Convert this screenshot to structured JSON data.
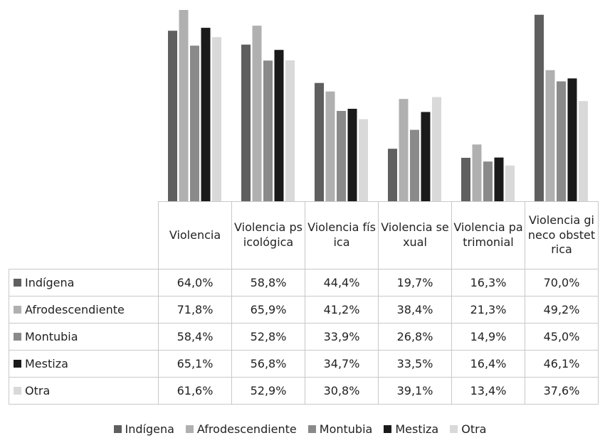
{
  "chart_data": {
    "type": "bar",
    "categories": [
      "Violencia",
      "Violencia psicológica",
      "Violencia física",
      "Violencia sexual",
      "Violencia patrimonial",
      "Violencia gineco obstetrica"
    ],
    "series": [
      {
        "name": "Indígena",
        "color": "#5f5f5f",
        "values": [
          64.0,
          58.8,
          44.4,
          19.7,
          16.3,
          70.0
        ],
        "value_labels": [
          "64,0%",
          "58,8%",
          "44,4%",
          "19,7%",
          "16,3%",
          "70,0%"
        ]
      },
      {
        "name": "Afrodescendiente",
        "color": "#b0b0b0",
        "values": [
          71.8,
          65.9,
          41.2,
          38.4,
          21.3,
          49.2
        ],
        "value_labels": [
          "71,8%",
          "65,9%",
          "41,2%",
          "38,4%",
          "21,3%",
          "49,2%"
        ]
      },
      {
        "name": "Montubia",
        "color": "#8a8a8a",
        "values": [
          58.4,
          52.8,
          33.9,
          26.8,
          14.9,
          45.0
        ],
        "value_labels": [
          "58,4%",
          "52,8%",
          "33,9%",
          "26,8%",
          "14,9%",
          "45,0%"
        ]
      },
      {
        "name": "Mestiza",
        "color": "#1a1a1a",
        "values": [
          65.1,
          56.8,
          34.7,
          33.5,
          16.4,
          46.1
        ],
        "value_labels": [
          "65,1%",
          "56,8%",
          "34,7%",
          "33,5%",
          "16,4%",
          "46,1%"
        ]
      },
      {
        "name": "Otra",
        "color": "#d9d9d9",
        "values": [
          61.6,
          52.9,
          30.8,
          39.1,
          13.4,
          37.6
        ],
        "value_labels": [
          "61,6%",
          "52,9%",
          "30,8%",
          "39,1%",
          "13,4%",
          "37,6%"
        ]
      }
    ],
    "legend": "bottom"
  }
}
